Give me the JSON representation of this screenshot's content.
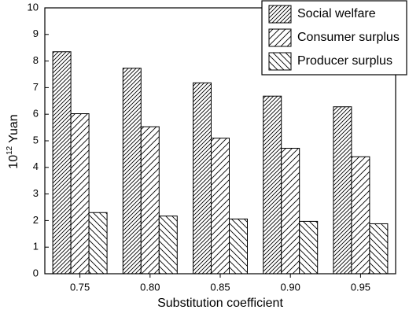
{
  "chart_data": {
    "type": "bar",
    "xlabel": "Substitution coefficient",
    "ylabel": {
      "base": "10",
      "exponent": "12",
      "unit": "Yuan"
    },
    "categories": [
      "0.75",
      "0.80",
      "0.85",
      "0.90",
      "0.95"
    ],
    "series": [
      {
        "name": "Social welfare",
        "color": "#000000",
        "hatch": "dense-forward",
        "values": [
          8.35,
          7.73,
          7.18,
          6.68,
          6.28
        ]
      },
      {
        "name": "Consumer surplus",
        "color": "#000000",
        "hatch": "forward",
        "values": [
          6.02,
          5.53,
          5.1,
          4.72,
          4.4
        ]
      },
      {
        "name": "Producer surplus",
        "color": "#000000",
        "hatch": "backward",
        "values": [
          2.3,
          2.17,
          2.06,
          1.97,
          1.88
        ]
      }
    ],
    "ylim": [
      0,
      10
    ],
    "yticks": [
      0,
      1,
      2,
      3,
      4,
      5,
      6,
      7,
      8,
      9,
      10
    ],
    "grid": false,
    "legend": "top-right"
  }
}
